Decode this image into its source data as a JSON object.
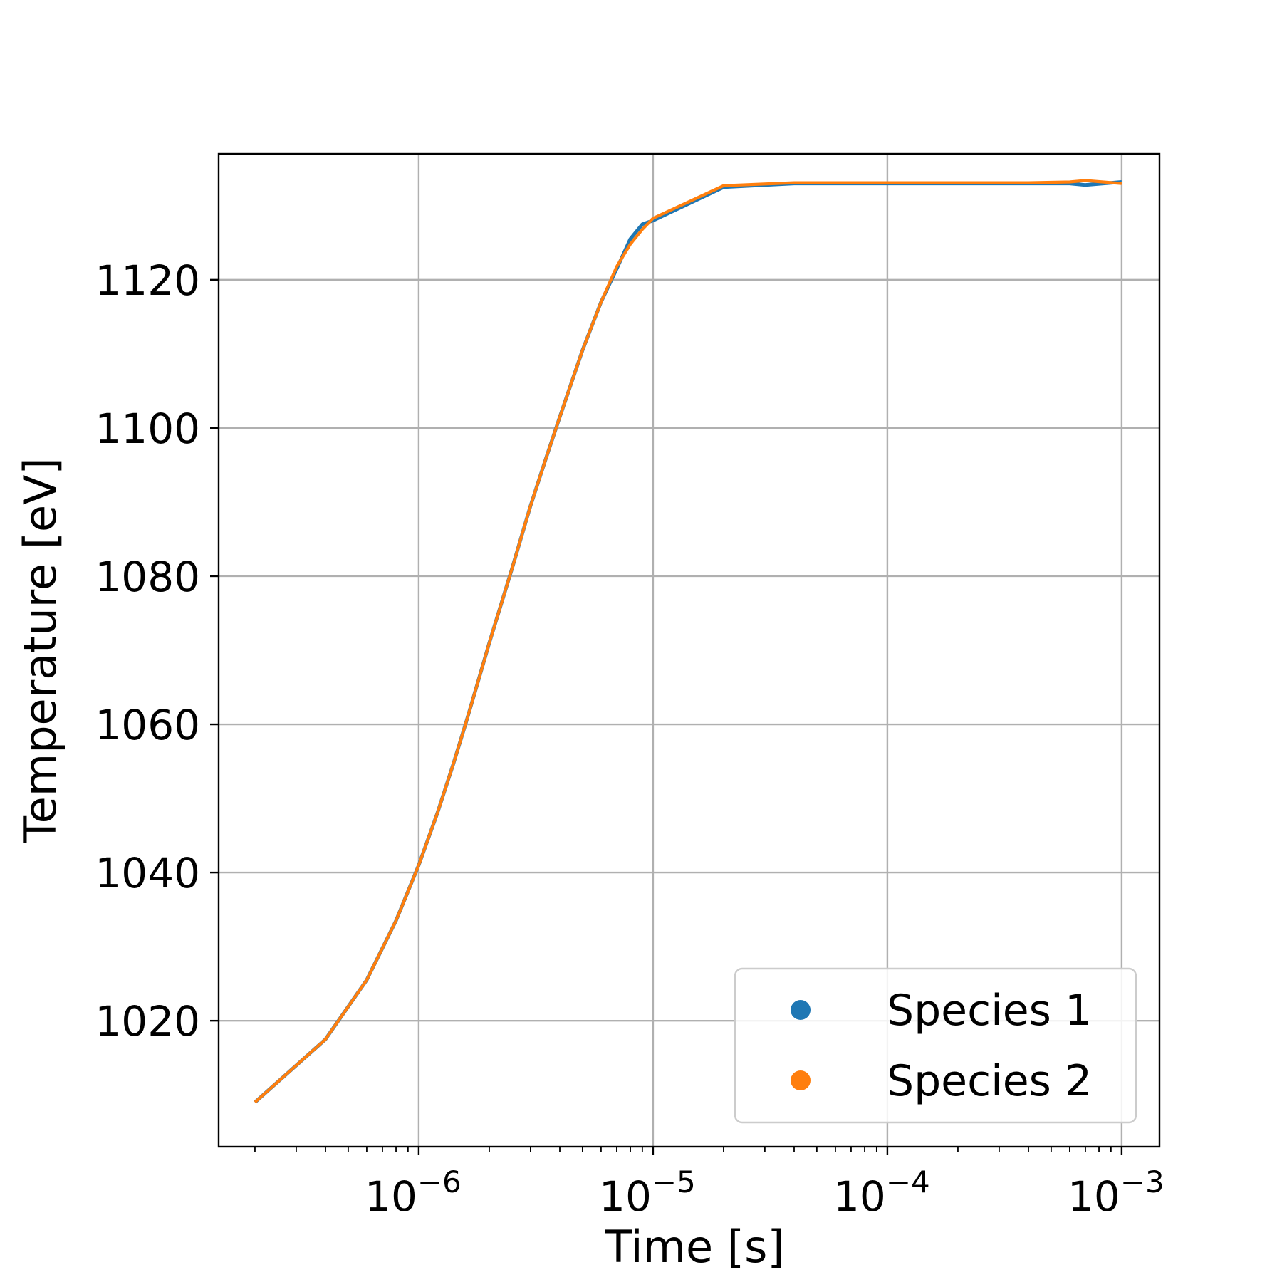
{
  "chart_data": {
    "type": "line",
    "title": "",
    "xlabel": "Time [s]",
    "ylabel": "Temperature [eV]",
    "xscale": "log",
    "xlim": [
      1.4e-07,
      0.00145
    ],
    "ylim": [
      1003,
      1137
    ],
    "grid": true,
    "legend_position": "lower-right",
    "x_ticks": [
      {
        "value": 1e-06,
        "base": "10",
        "exp": "−6"
      },
      {
        "value": 1e-05,
        "base": "10",
        "exp": "−5"
      },
      {
        "value": 0.0001,
        "base": "10",
        "exp": "−4"
      },
      {
        "value": 0.001,
        "base": "10",
        "exp": "−3"
      }
    ],
    "y_ticks": [
      {
        "value": 1020,
        "label": "1020"
      },
      {
        "value": 1040,
        "label": "1040"
      },
      {
        "value": 1060,
        "label": "1060"
      },
      {
        "value": 1080,
        "label": "1080"
      },
      {
        "value": 1100,
        "label": "1100"
      },
      {
        "value": 1120,
        "label": "1120"
      }
    ],
    "series": [
      {
        "name": "Species 1",
        "color": "#1f77b4",
        "x": [
          2e-07,
          4e-07,
          6e-07,
          8e-07,
          1e-06,
          1.2e-06,
          1.4e-06,
          1.6e-06,
          1.8e-06,
          2e-06,
          2.5e-06,
          3e-06,
          3.5e-06,
          4e-06,
          5e-06,
          6e-06,
          7e-06,
          8e-06,
          9e-06,
          1e-05,
          2e-05,
          4e-05,
          0.0001,
          0.0002,
          0.0004,
          0.0006,
          0.0007,
          0.001
        ],
        "y": [
          1009,
          1017.5,
          1025.5,
          1033.5,
          1041,
          1048,
          1054.5,
          1060.5,
          1066,
          1071,
          1081,
          1089.5,
          1096,
          1101.5,
          1110.5,
          1117,
          1121.5,
          1125.5,
          1127.5,
          1128,
          1132.5,
          1133,
          1133,
          1133,
          1133,
          1133,
          1132.8,
          1133.2
        ]
      },
      {
        "name": "Species 2",
        "color": "#ff7f0e",
        "x": [
          2e-07,
          4e-07,
          6e-07,
          8e-07,
          1e-06,
          1.2e-06,
          1.4e-06,
          1.6e-06,
          1.8e-06,
          2e-06,
          2.5e-06,
          3e-06,
          3.5e-06,
          4e-06,
          5e-06,
          6e-06,
          7e-06,
          8e-06,
          9e-06,
          1e-05,
          2e-05,
          4e-05,
          0.0001,
          0.0002,
          0.0004,
          0.0006,
          0.0007,
          0.001
        ],
        "y": [
          1009,
          1017.5,
          1025.5,
          1033.5,
          1041,
          1048,
          1054.5,
          1060.5,
          1066,
          1071,
          1081,
          1089.5,
          1096,
          1101.5,
          1110.5,
          1117,
          1121.8,
          1124.8,
          1126.8,
          1128.3,
          1132.7,
          1133.1,
          1133.1,
          1133.1,
          1133.1,
          1133.2,
          1133.4,
          1133
        ]
      }
    ]
  }
}
